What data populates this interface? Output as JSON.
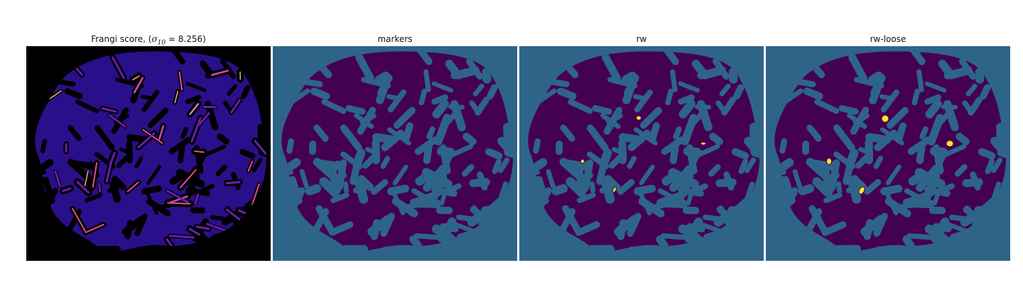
{
  "panels": [
    {
      "id": "frangi",
      "title_prefix": "Frangi score, (",
      "title_sigma": "σ",
      "title_sub": "10",
      "title_suffix": " = 8.256)"
    },
    {
      "id": "markers",
      "title": "markers"
    },
    {
      "id": "rw",
      "title": "rw"
    },
    {
      "id": "rw-loose",
      "title": "rw-loose"
    }
  ],
  "colors": {
    "frangi_background": "#000000",
    "frangi_low": "#1e0a6e",
    "frangi_mid": "#6a1cb0",
    "frangi_high": "#e0508f",
    "frangi_peak": "#f7b07a",
    "label_background": "#2f6489",
    "label_foreground": "#440154",
    "label_highlight": "#fde725"
  }
}
